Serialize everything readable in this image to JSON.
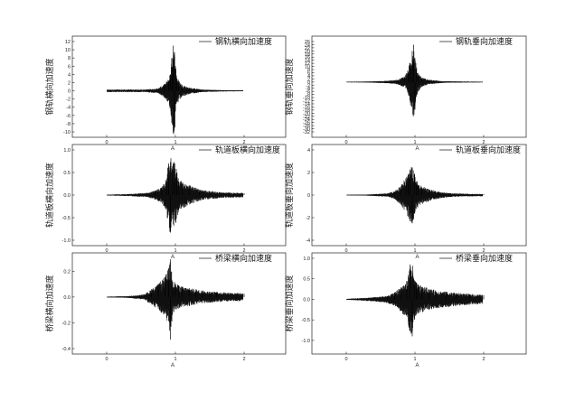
{
  "chart_data": [
    {
      "type": "line",
      "title": "",
      "xlabel": "A",
      "ylabel": "钢轨横向加速度",
      "xlim": [
        0,
        2
      ],
      "ylim": [
        -10,
        12
      ],
      "xticks": [
        0,
        1,
        2
      ],
      "yticks": [
        -10,
        -8,
        -6,
        -4,
        -2,
        0,
        2,
        4,
        6,
        8,
        10,
        12
      ],
      "series": [
        {
          "name": "钢轨横向加速度",
          "x": [
            0.05,
            0.3,
            0.55,
            0.75,
            0.85,
            0.9,
            0.93,
            0.95,
            0.97,
            0.99,
            1.0,
            1.02,
            1.05,
            1.1,
            1.2,
            1.4,
            1.7,
            2.0
          ],
          "y": [
            0,
            0.2,
            0.3,
            0.5,
            1.5,
            2.5,
            4,
            8,
            11,
            -9,
            6,
            3,
            2,
            1,
            0.5,
            0.2,
            0.1,
            0
          ],
          "envelope": [
            0.3,
            0.3,
            0.3,
            0.6,
            1.8,
            3,
            5,
            9,
            11,
            10,
            7,
            4,
            2.5,
            1.5,
            0.8,
            0.3,
            0.15,
            0.1
          ]
        }
      ],
      "legend": "top-right",
      "grid": false
    },
    {
      "type": "line",
      "title": "",
      "xlabel": "A",
      "ylabel": "钢轨垂向加速度",
      "xlim": [
        0,
        2
      ],
      "ylim": [
        -32,
        26
      ],
      "xticks": [
        0,
        1,
        2
      ],
      "yticks": [
        -32,
        -30,
        -28,
        -26,
        -24,
        -22,
        -20,
        -18,
        -16,
        -14,
        -12,
        -10,
        -8,
        -6,
        -4,
        -2,
        0,
        2,
        4,
        6,
        8,
        10,
        12,
        14,
        16,
        18,
        20,
        22,
        24,
        26
      ],
      "series": [
        {
          "name": "钢轨垂向加速度",
          "x": [
            0.0,
            0.3,
            0.6,
            0.75,
            0.85,
            0.9,
            0.93,
            0.96,
            0.98,
            1.0,
            1.02,
            1.05,
            1.1,
            1.2,
            1.4,
            1.7,
            2.0
          ],
          "y": [
            0,
            0,
            0.5,
            1,
            3,
            6,
            12,
            20,
            24,
            -15,
            8,
            4,
            2,
            1,
            0.3,
            0,
            0
          ],
          "envelope": [
            0.2,
            0.3,
            0.8,
            1.5,
            4,
            8,
            14,
            20,
            24,
            18,
            10,
            6,
            3,
            1.5,
            0.5,
            0.3,
            0.2
          ]
        }
      ],
      "legend": "top-right",
      "grid": false
    },
    {
      "type": "line",
      "title": "",
      "xlabel": "A",
      "ylabel": "轨道板横向加速度",
      "xlim": [
        0,
        2
      ],
      "ylim": [
        -1.0,
        1.0
      ],
      "xticks": [
        0,
        1,
        2
      ],
      "yticks": [
        -1.0,
        -0.5,
        0.0,
        0.5,
        1.0
      ],
      "series": [
        {
          "name": "轨道板横向加速度",
          "x": [
            0.0,
            0.3,
            0.6,
            0.7,
            0.8,
            0.87,
            0.9,
            0.93,
            0.96,
            0.99,
            1.02,
            1.05,
            1.1,
            1.2,
            1.35,
            1.5,
            1.7,
            2.0
          ],
          "y": [
            0,
            0.01,
            0.03,
            0.08,
            0.15,
            0.3,
            0.7,
            -0.8,
            0.6,
            0.7,
            0.5,
            0.3,
            0.25,
            0.2,
            0.12,
            0.08,
            0.05,
            0.04
          ],
          "envelope": [
            0.01,
            0.02,
            0.05,
            0.1,
            0.18,
            0.35,
            0.75,
            0.85,
            0.7,
            0.75,
            0.55,
            0.35,
            0.3,
            0.22,
            0.13,
            0.09,
            0.06,
            0.05
          ]
        }
      ],
      "legend": "top-right",
      "grid": false
    },
    {
      "type": "line",
      "title": "",
      "xlabel": "A",
      "ylabel": "轨道板垂向加速度",
      "xlim": [
        0,
        2
      ],
      "ylim": [
        -4,
        4
      ],
      "xticks": [
        0,
        1,
        2
      ],
      "yticks": [
        -4,
        -2,
        0,
        2,
        4
      ],
      "series": [
        {
          "name": "轨道板垂向加速度",
          "x": [
            0.0,
            0.3,
            0.6,
            0.7,
            0.8,
            0.87,
            0.9,
            0.93,
            0.96,
            0.99,
            1.02,
            1.05,
            1.1,
            1.2,
            1.35,
            1.5,
            1.7,
            2.0
          ],
          "y": [
            0,
            0.02,
            0.1,
            0.3,
            0.8,
            1.5,
            1.8,
            2.2,
            -2.5,
            1.8,
            1.2,
            0.9,
            0.7,
            0.5,
            0.3,
            0.15,
            0.1,
            0.08
          ],
          "envelope": [
            0.02,
            0.05,
            0.15,
            0.35,
            0.9,
            1.6,
            2.0,
            2.4,
            2.6,
            2.0,
            1.4,
            1.0,
            0.8,
            0.55,
            0.3,
            0.18,
            0.12,
            0.1
          ]
        }
      ],
      "legend": "top-right",
      "grid": false
    },
    {
      "type": "line",
      "title": "",
      "xlabel": "A",
      "ylabel": "桥梁横向加速度",
      "xlim": [
        0,
        2
      ],
      "ylim": [
        -0.4,
        0.3
      ],
      "xticks": [
        0,
        1,
        2
      ],
      "yticks": [
        -0.4,
        -0.2,
        0.0,
        0.2
      ],
      "series": [
        {
          "name": "桥梁横向加速度",
          "x": [
            0.0,
            0.3,
            0.55,
            0.65,
            0.75,
            0.85,
            0.9,
            0.93,
            0.96,
            1.0,
            1.05,
            1.1,
            1.2,
            1.3,
            1.4,
            1.5,
            1.6,
            1.75,
            2.0
          ],
          "y": [
            0,
            0.005,
            0.02,
            0.06,
            0.1,
            0.15,
            0.22,
            -0.33,
            0.12,
            0.1,
            0.09,
            0.08,
            0.07,
            0.06,
            0.05,
            0.04,
            0.035,
            0.03,
            0.025
          ],
          "envelope": [
            0.003,
            0.006,
            0.02,
            0.06,
            0.1,
            0.16,
            0.22,
            0.3,
            0.14,
            0.11,
            0.09,
            0.08,
            0.07,
            0.06,
            0.05,
            0.045,
            0.04,
            0.035,
            0.03
          ]
        }
      ],
      "legend": "top-right",
      "grid": false
    },
    {
      "type": "line",
      "title": "",
      "xlabel": "A",
      "ylabel": "桥梁垂向加速度",
      "xlim": [
        0,
        2
      ],
      "ylim": [
        -1.2,
        1.0
      ],
      "xticks": [
        0,
        1,
        2
      ],
      "yticks": [
        -1.0,
        -0.5,
        0.0,
        0.5,
        1.0
      ],
      "series": [
        {
          "name": "桥梁垂向加速度",
          "x": [
            0.0,
            0.2,
            0.4,
            0.6,
            0.7,
            0.8,
            0.88,
            0.93,
            0.96,
            0.99,
            1.02,
            1.05,
            1.1,
            1.2,
            1.3,
            1.45,
            1.6,
            1.8,
            2.0
          ],
          "y": [
            0,
            0.02,
            0.05,
            0.08,
            0.15,
            0.3,
            0.4,
            0.85,
            -0.9,
            0.45,
            0.4,
            0.35,
            0.3,
            0.25,
            0.2,
            0.18,
            0.15,
            0.12,
            0.1
          ],
          "envelope": [
            0.01,
            0.03,
            0.05,
            0.09,
            0.16,
            0.32,
            0.45,
            0.85,
            0.95,
            0.5,
            0.42,
            0.37,
            0.32,
            0.27,
            0.22,
            0.19,
            0.16,
            0.13,
            0.11
          ]
        }
      ],
      "legend": "top-right",
      "grid": false
    }
  ]
}
